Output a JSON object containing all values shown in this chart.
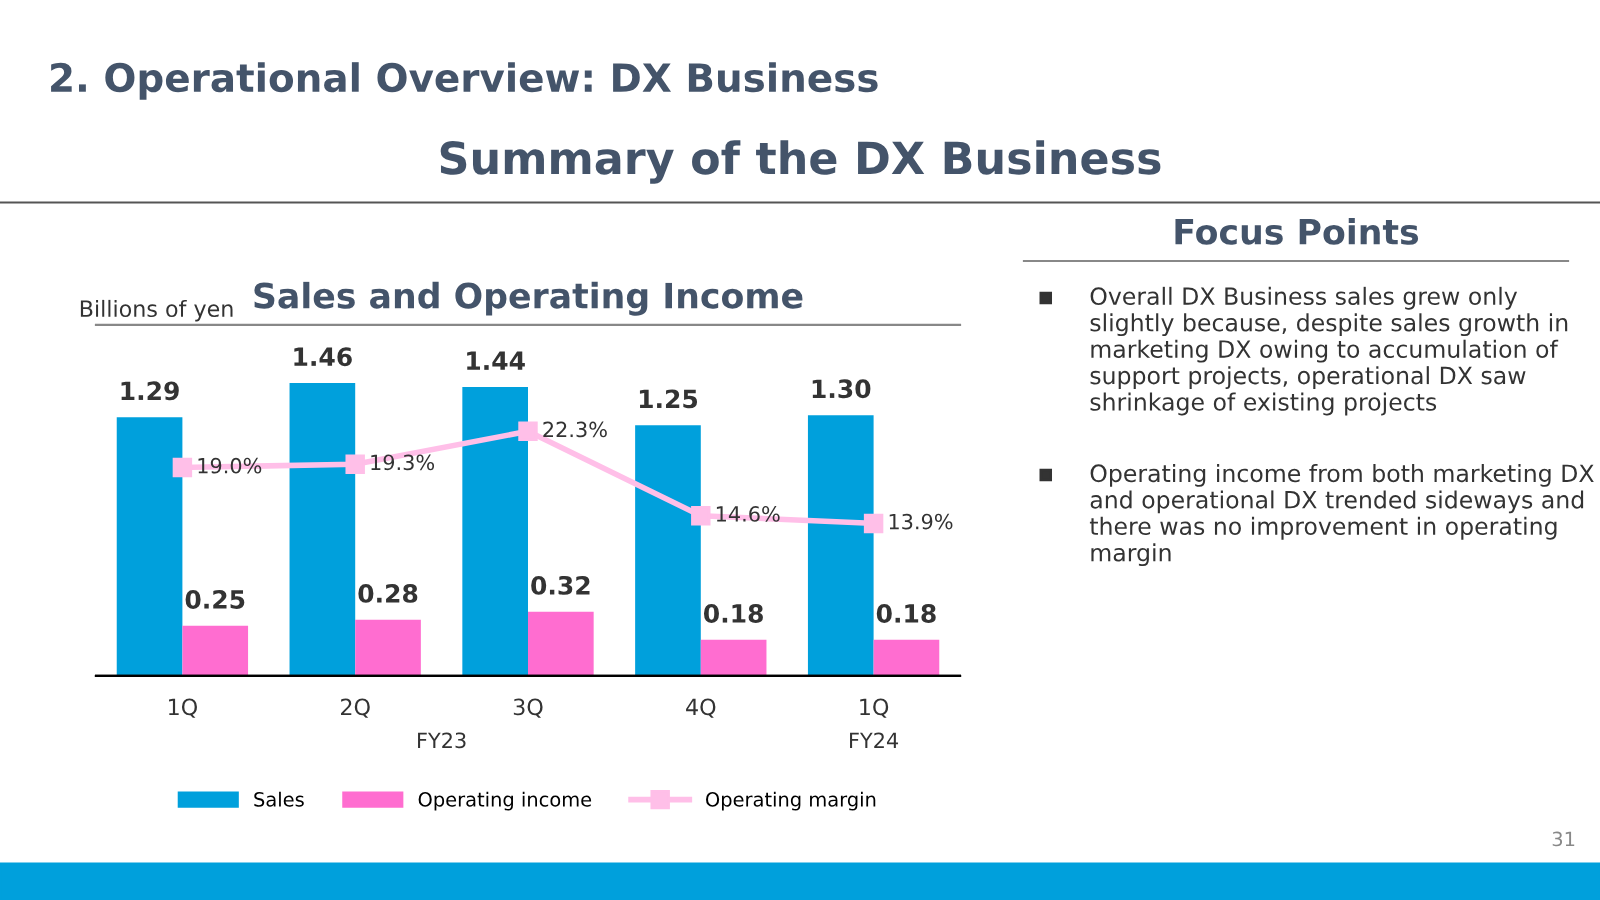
{
  "chart_data": [
    {
      "type": "bar",
      "title": "Sales and Operating Income",
      "ylabel": "Billions of yen",
      "categories": [
        "1Q",
        "2Q",
        "3Q",
        "4Q",
        "1Q"
      ],
      "series": [
        {
          "name": "Sales",
          "color": "#00a0dc",
          "values": [
            1.29,
            1.46,
            1.44,
            1.25,
            1.3
          ],
          "value_labels": [
            "1.29",
            "1.46",
            "1.44",
            "1.25",
            "1.30"
          ]
        },
        {
          "name": "Operating income",
          "color": "#ff6dd0",
          "values": [
            0.25,
            0.28,
            0.32,
            0.18,
            0.18
          ],
          "value_labels": [
            "0.25",
            "0.28",
            "0.32",
            "0.18",
            "0.18"
          ]
        },
        {
          "name": "Operating margin",
          "type": "line",
          "axis": "y2",
          "color": "#ffbfe8",
          "marker": "square",
          "values": [
            19.0,
            19.3,
            22.3,
            14.6,
            13.9
          ],
          "value_labels": [
            "19.0%",
            "19.3%",
            "22.3%",
            "14.6%",
            "13.9%"
          ]
        }
      ],
      "ylim": [
        0,
        1.75
      ],
      "y2lim": [
        0,
        32
      ],
      "data_labels": true,
      "tick_labels": "x",
      "grid": false,
      "legend": "bottom",
      "annotations": [
        "2. Operational Overview: DX Business",
        "Summary of the DX Business",
        "FY23",
        "FY24",
        "31"
      ]
    },
    {
      "type": "other",
      "title": "Focus Points",
      "annotations": [
        "Overall DX Business sales grew only slightly because, despite sales growth in marketing DX owing to accumulation of support projects, operational DX saw shrinkage of existing projects",
        "Operating income from both marketing DX and operational DX trended sideways and there was no improvement in operating margin"
      ]
    }
  ]
}
